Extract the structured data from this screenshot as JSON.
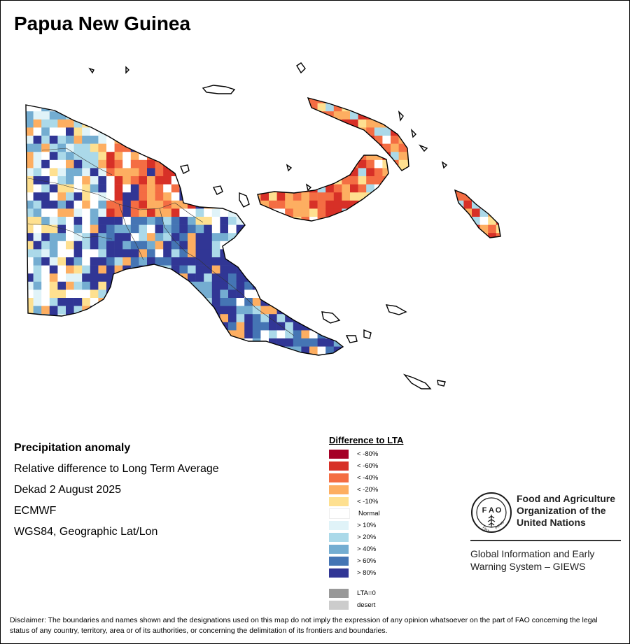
{
  "title": "Papua New Guinea",
  "info": {
    "heading": "Precipitation anomaly",
    "line1": "Relative difference to Long Term Average",
    "line2": "Dekad 2 August 2025",
    "line3": "ECMWF",
    "line4": "WGS84, Geographic Lat/Lon"
  },
  "legend": {
    "title": "Difference to LTA",
    "dry": [
      {
        "label": "< -80%",
        "color": "#a50026"
      },
      {
        "label": "< -60%",
        "color": "#d73027"
      },
      {
        "label": "< -40%",
        "color": "#f46d43"
      },
      {
        "label": "< -20%",
        "color": "#fdae61"
      },
      {
        "label": "< -10%",
        "color": "#fee090"
      }
    ],
    "normal": {
      "label": "Normal",
      "color": "#ffffff"
    },
    "wet": [
      {
        "label": "> 10%",
        "color": "#e0f3f8"
      },
      {
        "label": "> 20%",
        "color": "#abd9e9"
      },
      {
        "label": "> 40%",
        "color": "#74add1"
      },
      {
        "label": "> 60%",
        "color": "#4575b4"
      },
      {
        "label": "> 80%",
        "color": "#313695"
      }
    ],
    "other": [
      {
        "label": "LTA=0",
        "color": "#999999"
      },
      {
        "label": "desert",
        "color": "#cccccc"
      }
    ]
  },
  "fao": {
    "org_line1": "Food and Agriculture",
    "org_line2": "Organization of the",
    "org_line3": "United Nations",
    "giews_line1": "Global Information and Early",
    "giews_line2": "Warning System – GIEWS",
    "logo_color": "#1a1a1a"
  },
  "disclaimer": "Disclaimer: The boundaries and names shown and the designations used on this map do not imply the expression of any opinion whatsoever on the part of FAO concerning the legal status of any country, territory, area or of its authorities, or concerning the delimitation of its frontiers and boundaries."
}
